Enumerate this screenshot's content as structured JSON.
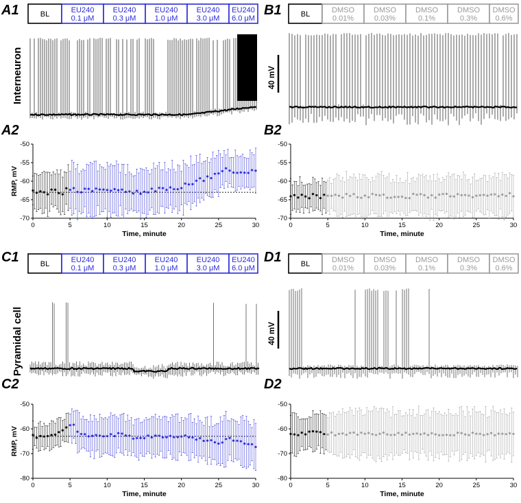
{
  "colors": {
    "drug": "#2a2ad8",
    "vehicle": "#9a9a9a",
    "baseline": "#000000"
  },
  "panel_labels": {
    "A1": "A1",
    "A2": "A2",
    "B1": "B1",
    "B2": "B2",
    "C1": "C1",
    "C2": "C2",
    "D1": "D1",
    "D2": "D2"
  },
  "row_labels": {
    "top": "Interneuron",
    "bottom": "Pyramidal cell"
  },
  "scale_bar": {
    "top": "40 mV",
    "bottom": "40 mV"
  },
  "drug_boxes": [
    {
      "l1": "BL",
      "l2": ""
    },
    {
      "l1": "EU240",
      "l2": "0.1 μM"
    },
    {
      "l1": "EU240",
      "l2": "0.3 μM"
    },
    {
      "l1": "EU240",
      "l2": "1.0 μM"
    },
    {
      "l1": "EU240",
      "l2": "3.0 μM"
    },
    {
      "l1": "EU240",
      "l2": "6.0 μM"
    }
  ],
  "vehicle_boxes": [
    {
      "l1": "BL",
      "l2": ""
    },
    {
      "l1": "DMSO",
      "l2": "0.01%"
    },
    {
      "l1": "DMSO",
      "l2": "0.03%"
    },
    {
      "l1": "DMSO",
      "l2": "0.1%"
    },
    {
      "l1": "DMSO",
      "l2": "0.3%"
    },
    {
      "l1": "DMSO",
      "l2": "0.6%"
    }
  ],
  "chart_data": [
    {
      "id": "A2",
      "type": "scatter",
      "xlabel": "Time, minute",
      "ylabel": "RMP, mV",
      "xlim": [
        0,
        30
      ],
      "ylim": [
        -70,
        -50
      ],
      "xticks": [
        0,
        5,
        10,
        15,
        20,
        25,
        30
      ],
      "yticks": [
        -70,
        -65,
        -60,
        -55,
        -50
      ],
      "baseline_ref": -63,
      "series": [
        {
          "x": [
            0,
            1,
            2,
            3,
            4,
            5,
            6,
            8,
            10,
            12,
            14,
            16,
            18,
            20,
            22,
            24,
            25,
            26,
            27,
            28,
            30
          ],
          "y": [
            -63,
            -63,
            -63,
            -62.5,
            -63,
            -62,
            -62.5,
            -62.5,
            -62.5,
            -62.5,
            -63,
            -62.5,
            -62,
            -61.5,
            -60,
            -59,
            -58,
            -56,
            -57.5,
            -57.5,
            -57.5
          ],
          "err": [
            5,
            5,
            5,
            5,
            5,
            6,
            6,
            6,
            6,
            6,
            6,
            6,
            6,
            6,
            6,
            5,
            5,
            4,
            5,
            5,
            5
          ]
        }
      ]
    },
    {
      "id": "B2",
      "type": "scatter",
      "xlabel": "Time, minute",
      "ylabel": "",
      "xlim": [
        0,
        30
      ],
      "ylim": [
        -70,
        -50
      ],
      "xticks": [
        0,
        5,
        10,
        15,
        20,
        25,
        30
      ],
      "yticks": [
        -70,
        -65,
        -60,
        -55,
        -50
      ],
      "series": [
        {
          "x": [
            0,
            1,
            2,
            3,
            4,
            5,
            7,
            10,
            13,
            16,
            19,
            22,
            25,
            28,
            30
          ],
          "y": [
            -64,
            -64,
            -64.5,
            -64,
            -64.5,
            -64,
            -64,
            -64,
            -64,
            -64,
            -64,
            -64,
            -64,
            -64,
            -63.5
          ],
          "err": [
            4,
            4,
            4,
            4,
            4,
            4,
            5,
            5,
            5,
            5,
            5,
            5,
            5,
            5,
            5
          ]
        }
      ]
    },
    {
      "id": "C2",
      "type": "scatter",
      "xlabel": "Time, minute",
      "ylabel": "RMP, mV",
      "xlim": [
        0,
        30
      ],
      "ylim": [
        -80,
        -50
      ],
      "xticks": [
        0,
        5,
        10,
        15,
        20,
        25,
        30
      ],
      "yticks": [
        -80,
        -70,
        -60,
        -50
      ],
      "baseline_ref": -63,
      "series": [
        {
          "x": [
            0,
            2,
            4,
            5,
            5.5,
            6,
            7,
            8,
            10,
            12,
            14,
            16,
            18,
            20,
            22,
            24,
            25,
            26,
            28,
            30
          ],
          "y": [
            -63,
            -63,
            -61,
            -59,
            -58,
            -61,
            -62,
            -63,
            -63,
            -62,
            -64,
            -63,
            -63,
            -63,
            -64,
            -65,
            -66,
            -64,
            -65,
            -67
          ],
          "err": [
            5,
            5,
            5,
            6,
            6,
            7,
            7,
            7,
            7,
            7,
            7,
            7,
            7,
            8,
            8,
            8,
            9,
            9,
            9,
            9
          ]
        }
      ]
    },
    {
      "id": "D2",
      "type": "scatter",
      "xlabel": "Time, minute",
      "ylabel": "",
      "xlim": [
        0,
        30
      ],
      "ylim": [
        -80,
        -50
      ],
      "xticks": [
        0,
        5,
        10,
        15,
        20,
        25,
        30
      ],
      "yticks": [
        -80,
        -70,
        -60,
        -50
      ],
      "series": [
        {
          "x": [
            0,
            1,
            2,
            3,
            4,
            5,
            7,
            10,
            13,
            16,
            19,
            22,
            25,
            28,
            30
          ],
          "y": [
            -62,
            -62,
            -62,
            -61,
            -61,
            -62,
            -62,
            -62,
            -62,
            -62,
            -62,
            -62,
            -62,
            -62,
            -62
          ],
          "err": [
            7,
            7,
            7,
            7,
            7,
            7,
            9,
            9,
            9,
            9,
            9,
            9,
            9,
            9,
            9
          ]
        }
      ]
    }
  ]
}
